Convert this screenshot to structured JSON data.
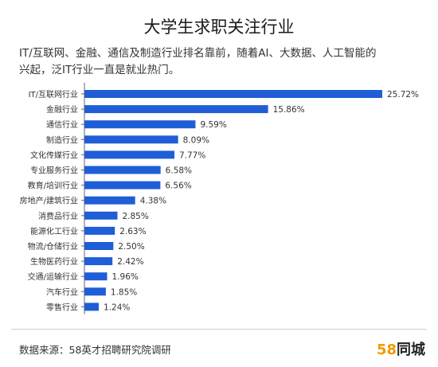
{
  "title": "大学生求职关注行业",
  "subtitle_line1": "IT/互联网、金融、通信及制造行业排名靠前，随着AI、大数据、人工智能的",
  "subtitle_line2": "兴起，泛IT行业一直是就业热门。",
  "source": "数据来源：58英才招聘研究院调研",
  "brand": {
    "number": "58",
    "name": "同城"
  },
  "colors": {
    "bar": "#1f5ed6",
    "axis": "#666666",
    "label": "#333333"
  },
  "chart_data": {
    "type": "bar",
    "orientation": "horizontal",
    "categories": [
      "IT/互联网行业",
      "金融行业",
      "通信行业",
      "制造行业",
      "文化传媒行业",
      "专业服务行业",
      "教育/培训行业",
      "房地产/建筑行业",
      "消费品行业",
      "能源化工行业",
      "物流/仓储行业",
      "生物医药行业",
      "交通/运输行业",
      "汽车行业",
      "零售行业"
    ],
    "values": [
      25.72,
      15.86,
      9.59,
      8.09,
      7.77,
      6.58,
      6.56,
      4.38,
      2.85,
      2.63,
      2.5,
      2.42,
      1.96,
      1.85,
      1.24
    ],
    "value_labels": [
      "25.72%",
      "15.86%",
      "9.59%",
      "8.09%",
      "7.77%",
      "6.58%",
      "6.56%",
      "4.38%",
      "2.85%",
      "2.63%",
      "2.50%",
      "2.42%",
      "1.96%",
      "1.85%",
      "1.24%"
    ],
    "xlim": [
      0,
      25.72
    ],
    "grid": false,
    "legend": "none"
  }
}
